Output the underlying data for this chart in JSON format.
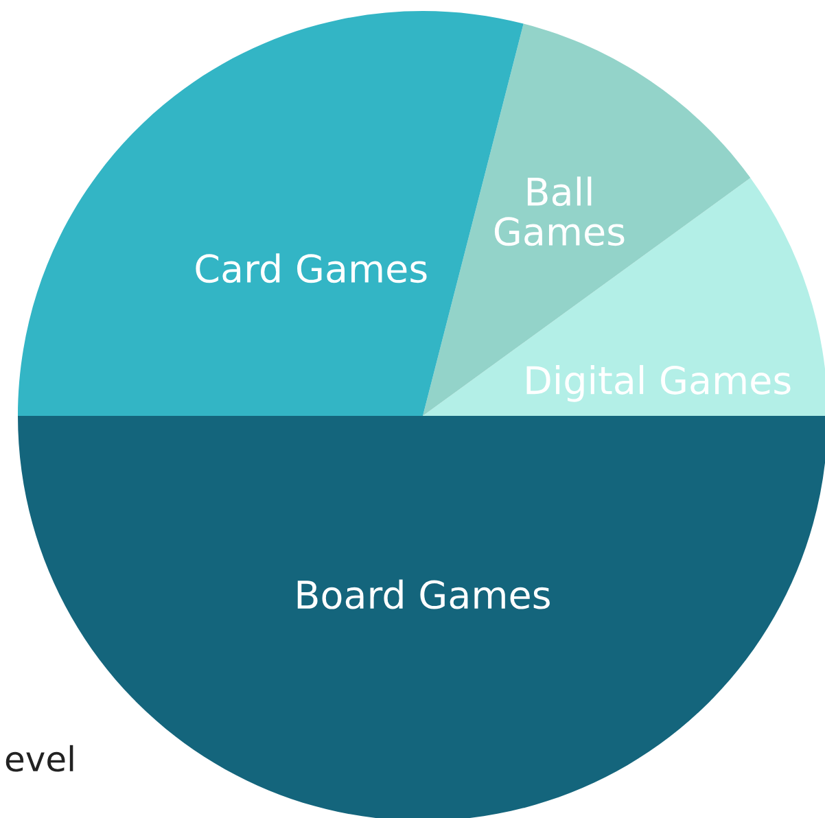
{
  "chart_data": {
    "type": "pie",
    "categories": [
      "Digital Games",
      "Ball Games",
      "Card Games",
      "Board Games"
    ],
    "values": [
      10,
      11,
      29,
      50
    ],
    "colors": [
      "#b3efe7",
      "#93d3c9",
      "#33b5c5",
      "#14657c"
    ],
    "annotations": [
      "evel"
    ]
  }
}
